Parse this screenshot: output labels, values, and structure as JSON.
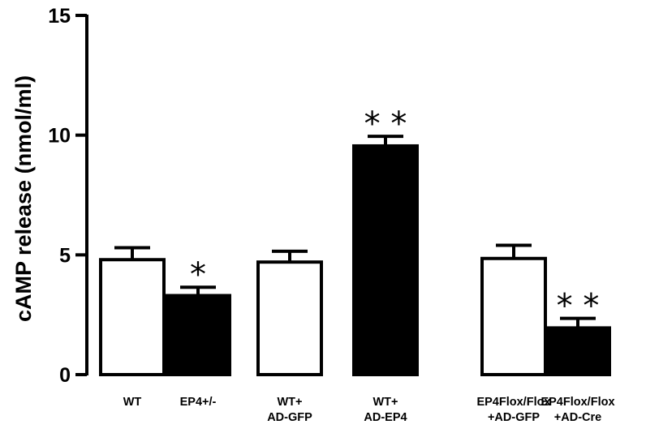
{
  "chart_data": {
    "type": "bar",
    "title": "",
    "xlabel": "",
    "ylabel": "cAMP release (nmol/ml)",
    "ylim": [
      0,
      15
    ],
    "yticks": [
      0,
      5,
      10,
      15
    ],
    "grid": false,
    "categories": [
      {
        "lines": [
          "WT"
        ],
        "value": 4.8,
        "error": 0.5,
        "fill": "white",
        "significance": ""
      },
      {
        "lines": [
          "EP4+/-"
        ],
        "value": 3.3,
        "error": 0.35,
        "fill": "black",
        "significance": "*"
      },
      {
        "lines": [
          "WT+",
          "AD-GFP"
        ],
        "value": 4.7,
        "error": 0.45,
        "fill": "white",
        "significance": ""
      },
      {
        "lines": [
          "WT+",
          "AD-EP4"
        ],
        "value": 9.55,
        "error": 0.4,
        "fill": "black",
        "significance": "**"
      },
      {
        "lines": [
          "EP4Flox/Flox",
          "+AD-GFP"
        ],
        "value": 4.85,
        "error": 0.55,
        "fill": "white",
        "significance": ""
      },
      {
        "lines": [
          "EP4Flox/Flox",
          "+AD-Cre"
        ],
        "value": 1.95,
        "error": 0.4,
        "fill": "black",
        "significance": "**"
      }
    ],
    "colors": {
      "white_bar": "#ffffff",
      "black_bar": "#000000",
      "axis": "#000000"
    }
  }
}
